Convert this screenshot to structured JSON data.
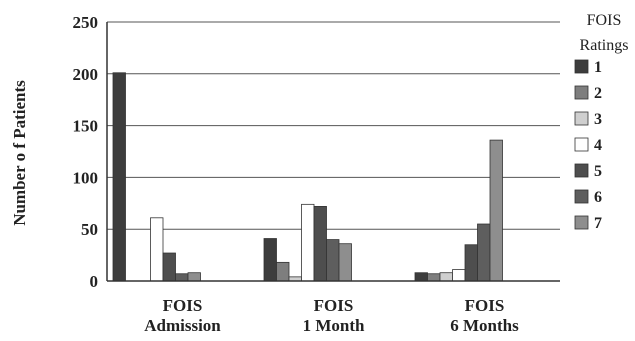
{
  "chart_data": {
    "type": "bar",
    "title": "",
    "xlabel": "",
    "ylabel": "Number o f Patients",
    "ylim": [
      0,
      250
    ],
    "yticks": [
      0,
      50,
      100,
      150,
      200,
      250
    ],
    "grid": true,
    "categories": [
      [
        "FOIS",
        "Admission"
      ],
      [
        "FOIS",
        "1 Month"
      ],
      [
        "FOIS",
        "6 Months"
      ]
    ],
    "legend": {
      "title": [
        "FOIS",
        "Ratings"
      ],
      "placement": "right"
    },
    "series": [
      {
        "name": "1",
        "color": "#3d3d3d",
        "values": [
          201,
          41,
          8
        ]
      },
      {
        "name": "2",
        "color": "#7e7e7e",
        "values": [
          0,
          18,
          7
        ]
      },
      {
        "name": "3",
        "color": "#cfcfcf",
        "values": [
          0,
          4,
          8
        ]
      },
      {
        "name": "4",
        "color": "#ffffff",
        "values": [
          61,
          74,
          11
        ]
      },
      {
        "name": "5",
        "color": "#4e4e4e",
        "values": [
          27,
          72,
          35
        ]
      },
      {
        "name": "6",
        "color": "#5e5e5e",
        "values": [
          7,
          40,
          55
        ]
      },
      {
        "name": "7",
        "color": "#8e8e8e",
        "values": [
          8,
          36,
          136
        ]
      }
    ]
  }
}
